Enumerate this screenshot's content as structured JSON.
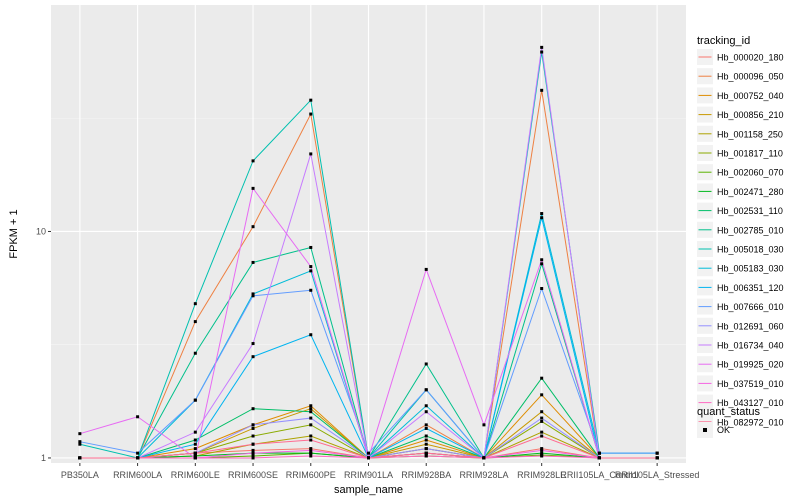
{
  "chart_data": {
    "type": "line",
    "xlabel": "sample_name",
    "ylabel": "FPKM + 1",
    "y_scale": "log10",
    "ylim": [
      0.95,
      100
    ],
    "y_ticks": [
      1,
      10
    ],
    "y_tick_labels": [
      "1",
      "10"
    ],
    "grid": true,
    "legend_position": "right",
    "categories": [
      "PB350LA",
      "RRIM600LA",
      "RRIM600LE",
      "RRIM600SE",
      "RRIM600PE",
      "RRIM901LA",
      "RRIM928BA",
      "RRIM928LA",
      "RRIM928LE",
      "RRII105LA_Control",
      "RRII105LA_Stressed"
    ],
    "colors": [
      "#F8766D",
      "#EE8042",
      "#DE8C00",
      "#C79800",
      "#ADA200",
      "#8AAB00",
      "#5BB300",
      "#00B81F",
      "#00BE67",
      "#00C08B",
      "#00C0AF",
      "#00BCD8",
      "#00B4F0",
      "#619CFF",
      "#9590FF",
      "#C77CFF",
      "#E76BF3",
      "#F564E3",
      "#FF6AC2",
      "#FF6C91"
    ],
    "legend": {
      "title": "tracking_id",
      "status_title": "quant_status",
      "status_label": "OK"
    },
    "series": [
      {
        "name": "Hb_000020_180",
        "values": [
          1.0,
          1.0,
          1.05,
          1.08,
          1.1,
          1.0,
          1.1,
          1.0,
          1.1,
          1.0,
          1.0
        ]
      },
      {
        "name": "Hb_000096_050",
        "values": [
          1.0,
          1.0,
          4.0,
          10.5,
          33.0,
          1.0,
          1.4,
          1.0,
          42.0,
          1.0,
          1.0
        ]
      },
      {
        "name": "Hb_000752_040",
        "values": [
          1.0,
          1.0,
          1.1,
          1.4,
          1.7,
          1.0,
          1.2,
          1.0,
          1.9,
          1.0,
          1.0
        ]
      },
      {
        "name": "Hb_000856_210",
        "values": [
          1.0,
          1.0,
          1.05,
          1.35,
          1.65,
          1.0,
          1.15,
          1.0,
          1.6,
          1.0,
          1.0
        ]
      },
      {
        "name": "Hb_001158_250",
        "values": [
          1.0,
          1.0,
          1.02,
          1.15,
          1.25,
          1.0,
          1.05,
          1.0,
          1.3,
          1.0,
          1.0
        ]
      },
      {
        "name": "Hb_001817_110",
        "values": [
          1.0,
          1.0,
          1.05,
          1.25,
          1.4,
          1.0,
          1.1,
          1.0,
          1.45,
          1.0,
          1.0
        ]
      },
      {
        "name": "Hb_002060_070",
        "values": [
          1.0,
          1.0,
          1.0,
          1.02,
          1.05,
          1.0,
          1.02,
          1.0,
          1.03,
          1.0,
          1.0
        ]
      },
      {
        "name": "Hb_002471_280",
        "values": [
          1.0,
          1.0,
          1.02,
          1.05,
          1.05,
          1.0,
          1.05,
          1.0,
          1.05,
          1.0,
          1.0
        ]
      },
      {
        "name": "Hb_002531_110",
        "values": [
          1.0,
          1.0,
          1.2,
          1.65,
          1.6,
          1.0,
          1.25,
          1.0,
          2.25,
          1.0,
          1.0
        ]
      },
      {
        "name": "Hb_002785_010",
        "values": [
          1.0,
          1.0,
          2.9,
          7.3,
          8.5,
          1.0,
          2.6,
          1.0,
          7.2,
          1.0,
          1.0
        ]
      },
      {
        "name": "Hb_005018_030",
        "values": [
          1.15,
          1.0,
          4.8,
          20.5,
          38.0,
          1.0,
          2.0,
          1.0,
          62.0,
          1.05,
          1.05
        ]
      },
      {
        "name": "Hb_005183_030",
        "values": [
          1.0,
          1.0,
          1.8,
          5.3,
          6.7,
          1.0,
          1.7,
          1.0,
          12.0,
          1.05,
          1.05
        ]
      },
      {
        "name": "Hb_006351_120",
        "values": [
          1.0,
          1.0,
          1.15,
          2.8,
          3.5,
          1.0,
          1.35,
          1.0,
          11.5,
          1.0,
          1.0
        ]
      },
      {
        "name": "Hb_007666_010",
        "values": [
          1.18,
          1.05,
          1.8,
          5.2,
          5.5,
          1.05,
          2.0,
          1.0,
          5.6,
          1.05,
          1.05
        ]
      },
      {
        "name": "Hb_012691_060",
        "values": [
          1.0,
          1.0,
          1.05,
          1.4,
          1.5,
          1.0,
          1.1,
          1.0,
          1.5,
          1.0,
          1.0
        ]
      },
      {
        "name": "Hb_016734_040",
        "values": [
          1.0,
          1.0,
          1.3,
          3.2,
          22.0,
          1.0,
          1.6,
          1.0,
          65.0,
          1.0,
          1.0
        ]
      },
      {
        "name": "Hb_019925_020",
        "values": [
          1.28,
          1.52,
          1.0,
          15.5,
          7.0,
          1.0,
          6.8,
          1.4,
          7.5,
          1.0,
          1.0
        ]
      },
      {
        "name": "Hb_037519_010",
        "values": [
          1.0,
          1.0,
          1.0,
          1.05,
          1.08,
          1.0,
          1.05,
          1.0,
          1.08,
          1.0,
          1.0
        ]
      },
      {
        "name": "Hb_043127_010",
        "values": [
          1.0,
          1.0,
          1.0,
          1.0,
          1.02,
          1.0,
          1.02,
          1.0,
          1.02,
          1.0,
          1.0
        ]
      },
      {
        "name": "Hb_082972_010",
        "values": [
          1.0,
          1.0,
          1.05,
          1.15,
          1.2,
          1.0,
          1.05,
          1.0,
          1.25,
          1.0,
          1.0
        ]
      }
    ]
  }
}
